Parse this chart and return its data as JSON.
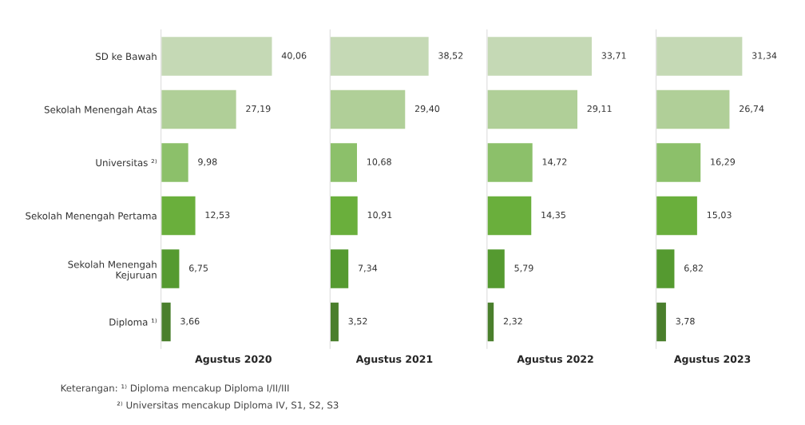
{
  "chart_data": [
    {
      "type": "bar",
      "orientation": "horizontal",
      "xlabel": "Agustus 2020",
      "tick_labels": "y",
      "categories": [
        "SD ke Bawah",
        "Sekolah Menengah Atas",
        "Universitas ²⁾",
        "Sekolah Menengah Pertama",
        "Sekolah Menengah\nKejuruan",
        "Diploma ¹⁾"
      ],
      "values": [
        40.06,
        27.19,
        9.98,
        12.53,
        6.75,
        3.66
      ],
      "value_labels": [
        "40,06",
        "27,19",
        "9,98",
        "12,53",
        "6,75",
        "3,66"
      ],
      "colors": [
        "#c5d9b5",
        "#b0cf98",
        "#8cc06a",
        "#6aaf3c",
        "#559a30",
        "#4a7f2c"
      ],
      "annotations": [
        "Keterangan: ¹⁾ Diploma mencakup Diploma I/II/III",
        "²⁾ Universitas mencakup Diploma IV, S1, S2, S3"
      ]
    },
    {
      "type": "bar",
      "orientation": "horizontal",
      "xlabel": "Agustus 2021",
      "tick_labels": false,
      "values": [
        38.52,
        29.4,
        10.68,
        10.91,
        7.34,
        3.52
      ],
      "value_labels": [
        "38,52",
        "29,40",
        "10,68",
        "10,91",
        "7,34",
        "3,52"
      ],
      "colors": [
        "#c5d9b5",
        "#b0cf98",
        "#8cc06a",
        "#6aaf3c",
        "#559a30",
        "#4a7f2c"
      ]
    },
    {
      "type": "bar",
      "orientation": "horizontal",
      "xlabel": "Agustus 2022",
      "tick_labels": false,
      "values": [
        33.71,
        29.11,
        14.72,
        14.35,
        5.79,
        2.32
      ],
      "value_labels": [
        "33,71",
        "29,11",
        "14,72",
        "14,35",
        "5,79",
        "2,32"
      ],
      "colors": [
        "#c5d9b5",
        "#b0cf98",
        "#8cc06a",
        "#6aaf3c",
        "#559a30",
        "#4a7f2c"
      ]
    },
    {
      "type": "bar",
      "orientation": "horizontal",
      "xlabel": "Agustus 2023",
      "tick_labels": false,
      "values": [
        31.34,
        26.74,
        16.29,
        15.03,
        6.82,
        3.78
      ],
      "value_labels": [
        "31,34",
        "26,74",
        "16,29",
        "15,03",
        "6,82",
        "3,78"
      ],
      "colors": [
        "#c5d9b5",
        "#b0cf98",
        "#8cc06a",
        "#6aaf3c",
        "#559a30",
        "#4a7f2c"
      ]
    }
  ]
}
